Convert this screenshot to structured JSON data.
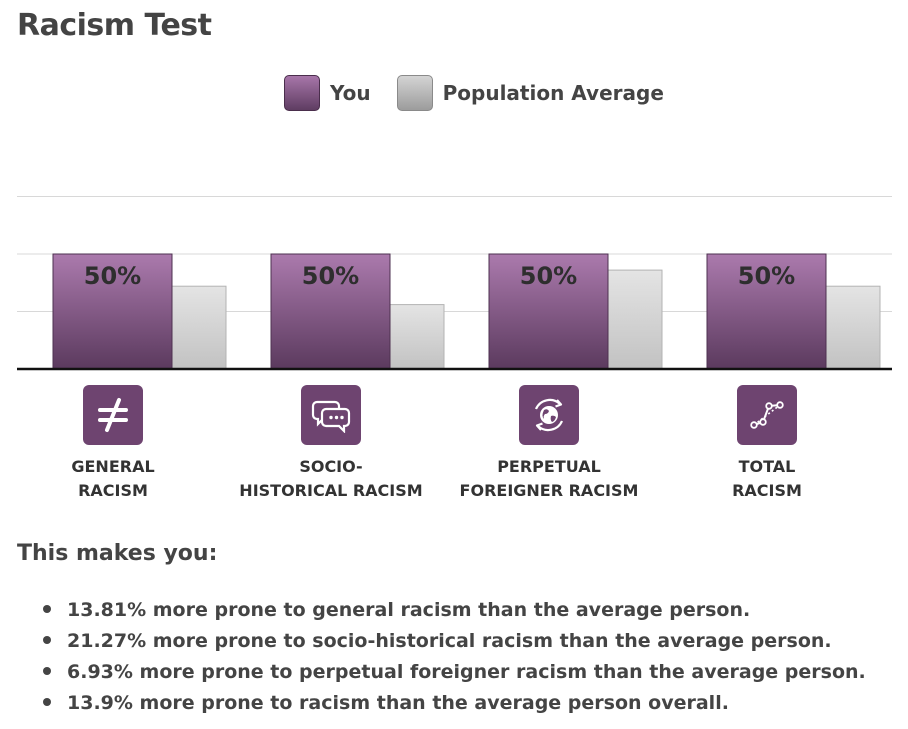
{
  "page": {
    "title": "Racism Test"
  },
  "colors": {
    "you": "#7b4f7e",
    "population_average": "#c4c4c4",
    "icon_bg": "#6e4470"
  },
  "legend": {
    "you": "You",
    "population_average": "Population Average"
  },
  "categories": [
    {
      "label": "GENERAL\nRACISM",
      "icon": "not-equal-icon"
    },
    {
      "label": "SOCIO-\nHISTORICAL RACISM",
      "icon": "speech-bubbles-icon"
    },
    {
      "label": "PERPETUAL\nFOREIGNER RACISM",
      "icon": "globe-refresh-icon"
    },
    {
      "label": "TOTAL\nRACISM",
      "icon": "connected-dots-icon"
    }
  ],
  "chart_data": {
    "type": "bar",
    "categories": [
      "GENERAL RACISM",
      "SOCIO-HISTORICAL RACISM",
      "PERPETUAL FOREIGNER RACISM",
      "TOTAL RACISM"
    ],
    "series": [
      {
        "name": "You",
        "values": [
          50,
          50,
          50,
          50
        ],
        "data_labels": [
          "50%",
          "50%",
          "50%",
          "50%"
        ]
      },
      {
        "name": "Population Average",
        "values": [
          36,
          28,
          43,
          36
        ]
      }
    ],
    "ylim": [
      0,
      100
    ],
    "grid": true,
    "legend_position": "top-center"
  },
  "summary": {
    "heading": "This makes you:",
    "items": [
      "13.81% more prone to general racism than the average person.",
      "21.27% more prone to socio-historical racism than the average person.",
      "6.93% more prone to perpetual foreigner racism than the average person.",
      "13.9% more prone to racism than the average person overall."
    ]
  }
}
